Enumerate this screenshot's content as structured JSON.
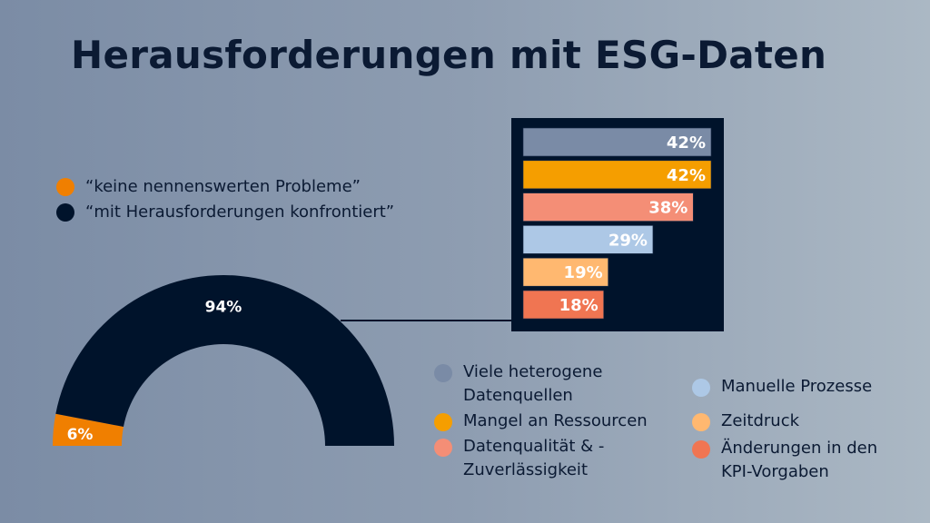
{
  "title": "Herausforderungen mit ESG-Daten",
  "legend_top": [
    {
      "label": "“keine nennenswerten Probleme”",
      "color": "#f07f00"
    },
    {
      "label": "“mit Herausforderungen konfrontiert”",
      "color": "#00132b"
    }
  ],
  "chart_data": [
    {
      "type": "pie",
      "variant": "half-donut",
      "slices": [
        {
          "label": "“keine nennenswerten Probleme”",
          "value": 6,
          "display": "6%",
          "color": "#f07f00"
        },
        {
          "label": "“mit Herausforderungen konfrontiert”",
          "value": 94,
          "display": "94%",
          "color": "#00132b"
        }
      ]
    },
    {
      "type": "bar",
      "orientation": "horizontal",
      "categories": [
        "Viele heterogene Datenquellen",
        "Mangel an Ressourcen",
        "Datenqualität & -Zuverlässigkeit",
        "Manuelle Prozesse",
        "Zeitdruck",
        "Änderungen in den KPI-Vorgaben"
      ],
      "values": [
        42,
        42,
        38,
        29,
        19,
        18
      ],
      "labels": [
        "42%",
        "42%",
        "38%",
        "29%",
        "19%",
        "18%"
      ],
      "colors": [
        "#7a8ba6",
        "#f59e00",
        "#f48e76",
        "#adc8e6",
        "#ffb870",
        "#f07552"
      ],
      "background": "#00132b"
    }
  ],
  "legend_bottom": [
    {
      "lines": [
        "Viele heterogene",
        "Datenquellen"
      ],
      "color": "#7a8ba6"
    },
    {
      "lines": [
        "Mangel an Ressourcen"
      ],
      "color": "#f59e00"
    },
    {
      "lines": [
        "Datenqualität & -",
        "Zuverlässigkeit"
      ],
      "color": "#f48e76"
    },
    {
      "lines": [
        "Manuelle Prozesse"
      ],
      "color": "#adc8e6"
    },
    {
      "lines": [
        "Zeitdruck"
      ],
      "color": "#ffb870"
    },
    {
      "lines": [
        "Änderungen in den",
        "KPI-Vorgaben"
      ],
      "color": "#f07552"
    }
  ]
}
